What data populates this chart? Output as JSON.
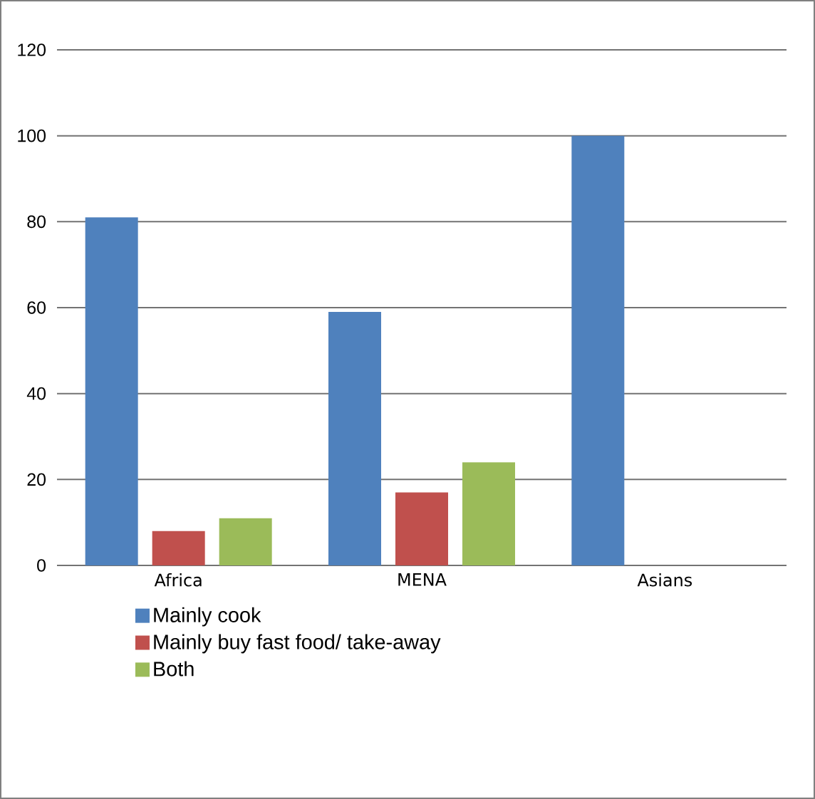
{
  "chart_data": {
    "type": "bar",
    "categories": [
      "Africa",
      "MENA",
      "Asians"
    ],
    "series": [
      {
        "name": "Mainly cook",
        "color": "#4f81bd",
        "values": [
          81,
          59,
          100
        ]
      },
      {
        "name": "Mainly buy fast food/ take-away",
        "color": "#c0504d",
        "values": [
          8,
          17,
          0
        ]
      },
      {
        "name": "Both",
        "color": "#9bbb59",
        "values": [
          11,
          24,
          0
        ]
      }
    ],
    "ylim": [
      0,
      120
    ],
    "yticks": [
      0,
      20,
      40,
      60,
      80,
      100,
      120
    ],
    "grid": "y",
    "legend": "bottom"
  }
}
